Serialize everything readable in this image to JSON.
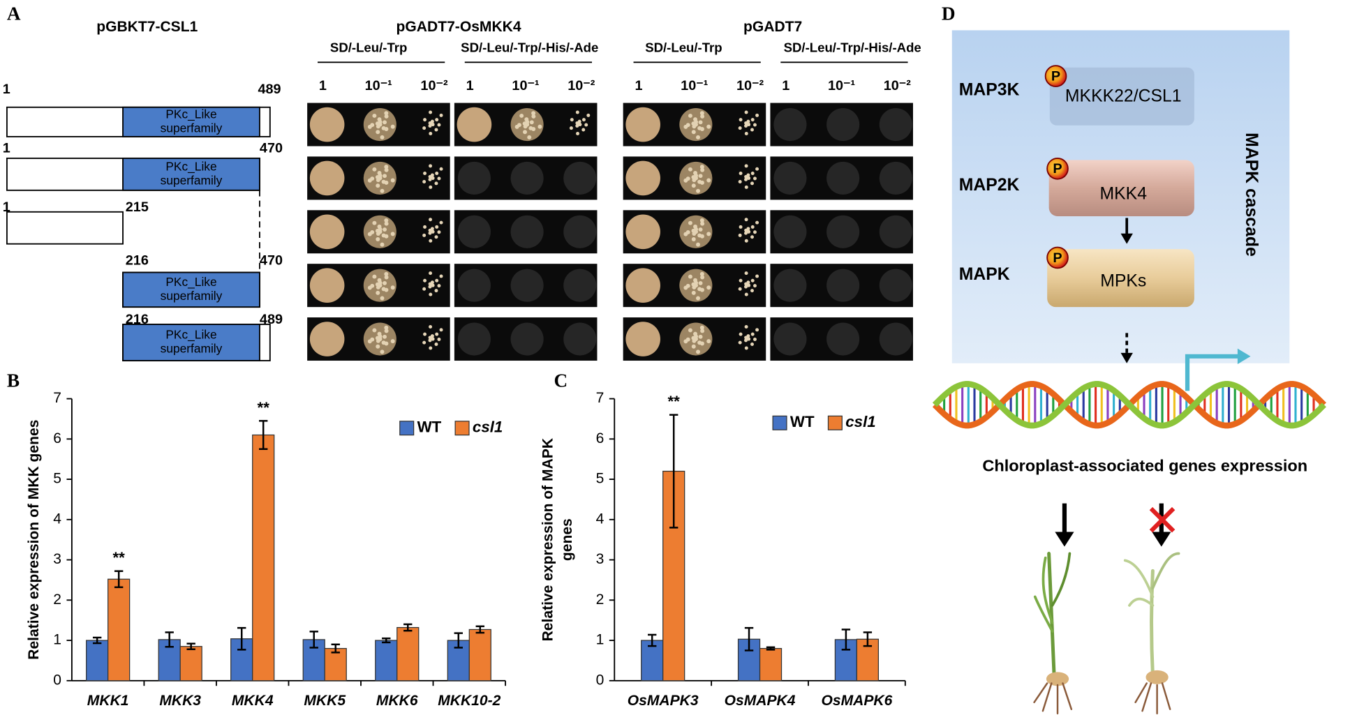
{
  "panel_labels": [
    "A",
    "B",
    "C",
    "D"
  ],
  "panel_a": {
    "bait": "pGBKT7-CSL1",
    "preys": [
      {
        "name": "pGADT7-OsMKK4",
        "media": [
          "SD/-Leu/-Trp",
          "SD/-Leu/-Trp/-His/-Ade"
        ]
      },
      {
        "name": "pGADT7",
        "media": [
          "SD/-Leu/-Trp",
          "SD/-Leu/-Trp/-His/-Ade"
        ]
      }
    ],
    "dilutions": [
      "1",
      "10⁻¹",
      "10⁻²"
    ],
    "domain": [
      "PKc_Like",
      "superfamily"
    ],
    "constructs": [
      {
        "start": 1,
        "end": 489
      },
      {
        "start": 1,
        "end": 470
      },
      {
        "start": 1,
        "end": 215
      },
      {
        "start": 216,
        "end": 470
      },
      {
        "start": 216,
        "end": 489
      }
    ]
  },
  "panel_d": {
    "phospho": "P",
    "levels": [
      {
        "name": "MAP3K",
        "protein": "MKKK22/CSL1"
      },
      {
        "name": "MAP2K",
        "protein": "MKK4"
      },
      {
        "name": "MAPK",
        "protein": "MPKs"
      }
    ],
    "cascade": "MAPK cascade",
    "outcome": "Chloroplast-associated genes expression"
  },
  "chart_data": [
    {
      "type": "bar",
      "ylabel": "Relative expression of MKK genes",
      "categories": [
        "MKK1",
        "MKK3",
        "MKK4",
        "MKK5",
        "MKK6",
        "MKK10-2"
      ],
      "series": [
        {
          "name": "WT",
          "color": "#4472c4",
          "values": [
            1.0,
            1.02,
            1.04,
            1.02,
            1.0,
            1.0
          ],
          "errors": [
            0.07,
            0.18,
            0.27,
            0.2,
            0.05,
            0.18
          ],
          "annotations": [
            null,
            null,
            null,
            null,
            null,
            null
          ]
        },
        {
          "name": "csl1",
          "color": "#ed7d31",
          "font_style": "italic",
          "values": [
            2.52,
            0.85,
            6.1,
            0.8,
            1.32,
            1.27
          ],
          "errors": [
            0.2,
            0.07,
            0.35,
            0.1,
            0.08,
            0.08
          ],
          "annotations": [
            "**",
            null,
            "**",
            null,
            null,
            null
          ]
        }
      ],
      "ylim": [
        0,
        7
      ],
      "yticks": [
        0,
        1,
        2,
        3,
        4,
        5,
        6,
        7
      ],
      "legend": "upper right"
    },
    {
      "type": "bar",
      "ylabel": [
        "Relative expression of MAPK",
        "genes"
      ],
      "categories": [
        "OsMAPK3",
        "OsMAPK4",
        "OsMAPK6"
      ],
      "series": [
        {
          "name": "WT",
          "color": "#4472c4",
          "values": [
            1.0,
            1.03,
            1.02
          ],
          "errors": [
            0.14,
            0.28,
            0.25
          ],
          "annotations": [
            null,
            null,
            null
          ]
        },
        {
          "name": "csl1",
          "color": "#ed7d31",
          "font_style": "italic",
          "values": [
            5.2,
            0.8,
            1.03
          ],
          "errors": [
            1.4,
            0.03,
            0.17
          ],
          "annotations": [
            "**",
            null,
            null
          ]
        }
      ],
      "ylim": [
        0,
        7
      ],
      "yticks": [
        0,
        1,
        2,
        3,
        4,
        5,
        6,
        7
      ],
      "legend": "upper right"
    }
  ]
}
